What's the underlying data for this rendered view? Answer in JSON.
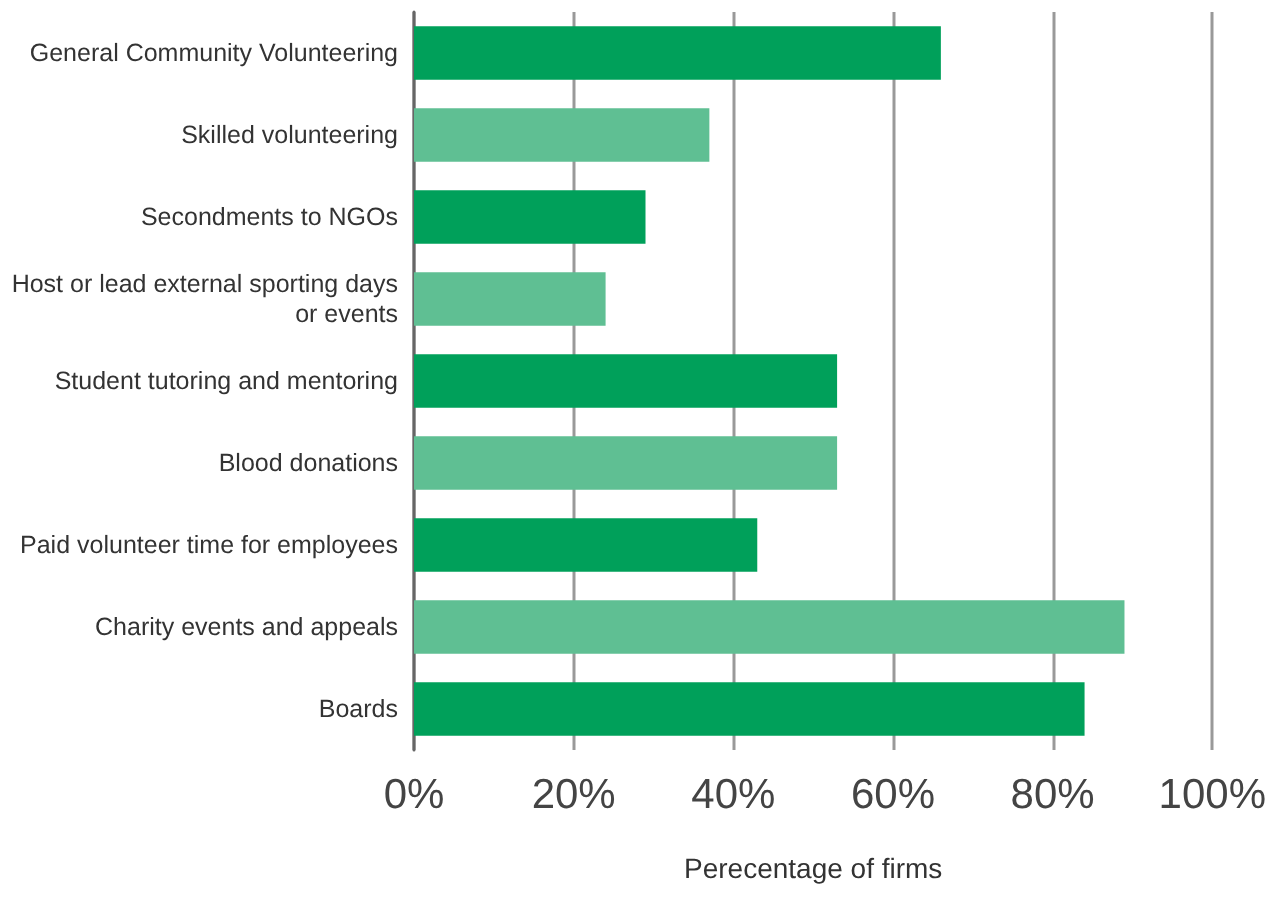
{
  "chart_data": {
    "type": "bar",
    "orientation": "horizontal",
    "xlabel": "Perecentage of firms",
    "categories": [
      "General Community Volunteering",
      "Skilled volunteering",
      "Secondments to NGOs",
      "Host or lead external sporting days or events",
      "Student tutoring and mentoring",
      "Blood donations",
      "Paid volunteer time for employees",
      "Charity events and appeals",
      "Boards"
    ],
    "values": [
      66,
      37,
      29,
      24,
      53,
      53,
      43,
      89,
      84
    ],
    "colors": [
      "#00a05a",
      "#5fbf93",
      "#00a05a",
      "#5fbf93",
      "#00a05a",
      "#5fbf93",
      "#00a05a",
      "#5fbf93",
      "#00a05a"
    ],
    "xlim": [
      0,
      100
    ],
    "xticks": [
      {
        "value": 0,
        "label": "0%"
      },
      {
        "value": 20,
        "label": "20%"
      },
      {
        "value": 40,
        "label": "40%"
      },
      {
        "value": 60,
        "label": "60%"
      },
      {
        "value": 80,
        "label": "80%"
      },
      {
        "value": 100,
        "label": "100%"
      }
    ],
    "grid": "x"
  }
}
